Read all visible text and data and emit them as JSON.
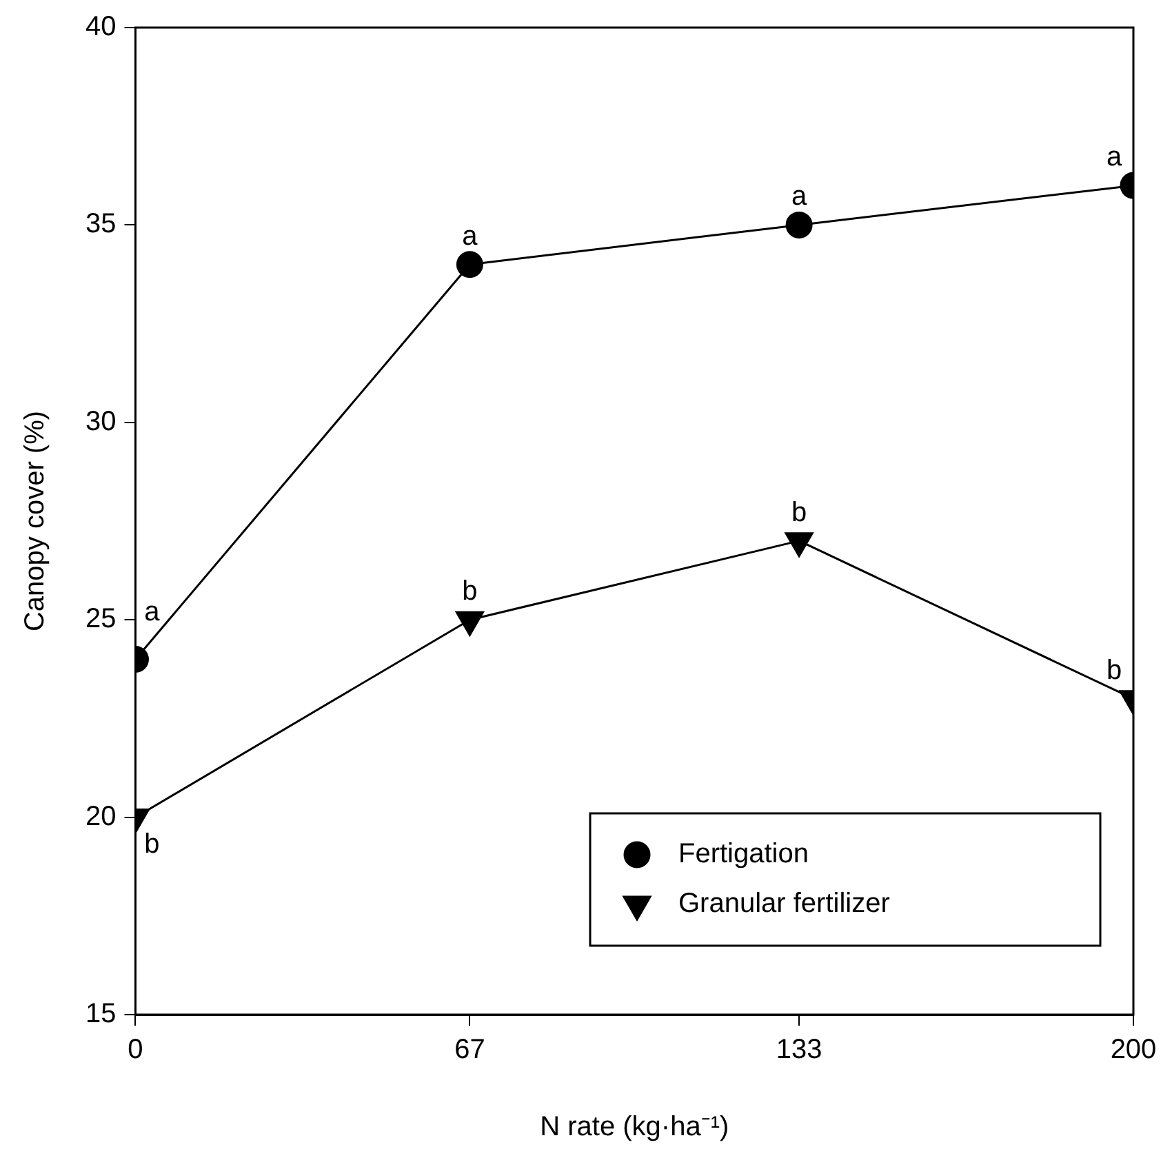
{
  "chart_data": {
    "type": "line",
    "xlabel": "N rate (kg·ha⁻¹)",
    "ylabel": "Canopy cover (%)",
    "x": [
      0,
      67,
      133,
      200
    ],
    "xlim": [
      0,
      200
    ],
    "xticks": [
      0,
      67,
      133,
      200
    ],
    "ylim": [
      15,
      40
    ],
    "yticks": [
      15,
      20,
      25,
      30,
      35,
      40
    ],
    "series": [
      {
        "name": "Fertigation",
        "color": "#000000",
        "marker": "circle",
        "values": [
          24,
          34,
          35,
          36
        ]
      },
      {
        "name": "Granular fertilizer",
        "color": "#000000",
        "marker": "triangle",
        "values": [
          20,
          25,
          27,
          23
        ]
      }
    ],
    "annotations": [
      {
        "text": "a",
        "x": 0,
        "y": 24
      },
      {
        "text": "a",
        "x": 67,
        "y": 34
      },
      {
        "text": "a",
        "x": 133,
        "y": 35
      },
      {
        "text": "a",
        "x": 200,
        "y": 36
      },
      {
        "text": "b",
        "x": 0,
        "y": 20
      },
      {
        "text": "b",
        "x": 67,
        "y": 25
      },
      {
        "text": "b",
        "x": 133,
        "y": 27
      },
      {
        "text": "b",
        "x": 200,
        "y": 23
      }
    ],
    "grid": false,
    "legend": "bottom right",
    "line_style": "solid"
  }
}
